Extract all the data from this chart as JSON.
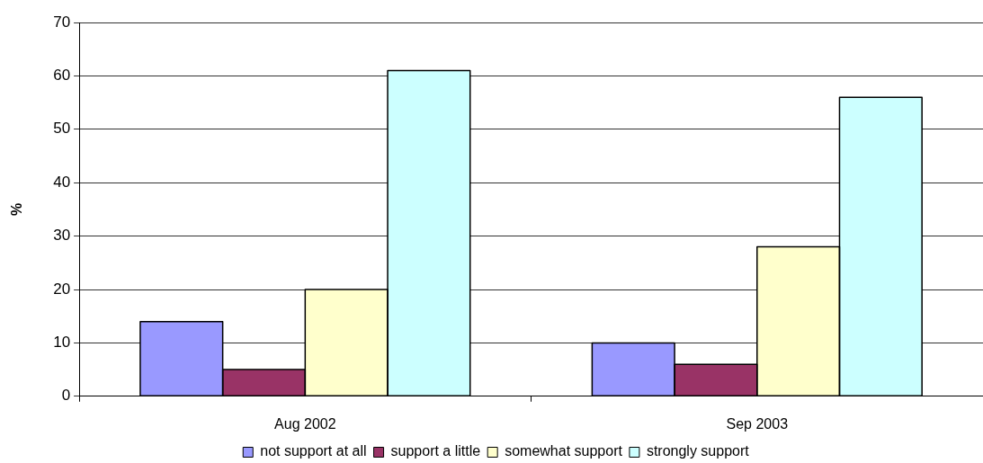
{
  "chart_data": {
    "type": "bar",
    "ylabel": "%",
    "categories": [
      "Aug 2002",
      "Sep 2003"
    ],
    "series": [
      {
        "name": "not support at all",
        "color": "#9999ff",
        "values": [
          14,
          10
        ]
      },
      {
        "name": "support a little",
        "color": "#993366",
        "values": [
          5,
          6
        ]
      },
      {
        "name": "somewhat support",
        "color": "#ffffcc",
        "values": [
          20,
          28
        ]
      },
      {
        "name": "strongly support",
        "color": "#ccffff",
        "values": [
          61,
          56
        ]
      }
    ],
    "ylim": [
      0,
      70
    ],
    "yticks": [
      0,
      10,
      20,
      30,
      40,
      50,
      60,
      70
    ],
    "grid": "y",
    "legend": "bottom"
  }
}
